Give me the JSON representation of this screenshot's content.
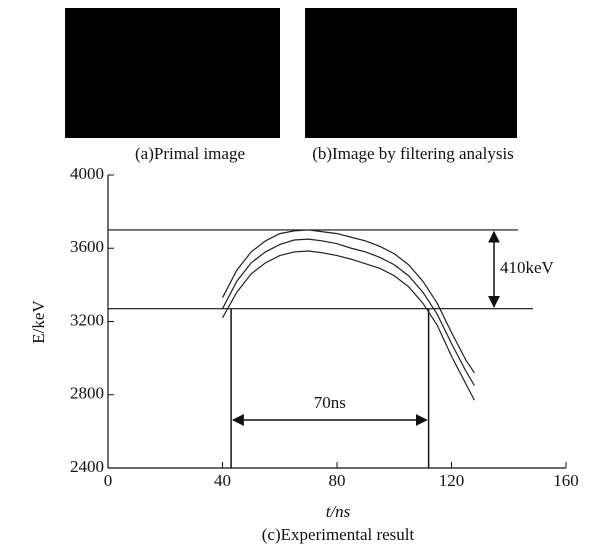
{
  "images": [
    {
      "caption": "(a)Primal image"
    },
    {
      "caption": "(b)Image by filtering analysis"
    }
  ],
  "chart_data": {
    "type": "line",
    "caption": "(c)Experimental result",
    "x_label": "t/ns",
    "y_label": "E/keV",
    "x": [
      40,
      45,
      50,
      55,
      60,
      65,
      70,
      75,
      80,
      85,
      90,
      95,
      100,
      105,
      110,
      115,
      120,
      125,
      128
    ],
    "series": [
      {
        "color": "#222222",
        "values": [
          3330,
          3480,
          3580,
          3640,
          3680,
          3695,
          3700,
          3690,
          3680,
          3660,
          3640,
          3610,
          3570,
          3510,
          3420,
          3300,
          3140,
          2990,
          2920
        ]
      },
      {
        "color": "#222222",
        "values": [
          3270,
          3420,
          3520,
          3580,
          3620,
          3645,
          3650,
          3640,
          3625,
          3600,
          3580,
          3550,
          3510,
          3450,
          3360,
          3240,
          3080,
          2930,
          2850
        ]
      },
      {
        "color": "#222222",
        "values": [
          3220,
          3360,
          3460,
          3520,
          3560,
          3580,
          3585,
          3575,
          3560,
          3540,
          3515,
          3490,
          3450,
          3390,
          3300,
          3180,
          3010,
          2860,
          2770
        ]
      }
    ],
    "hlines": [
      3700,
      3270
    ],
    "vlines": [
      43,
      112
    ],
    "annotations": [
      "410keV",
      "70ns"
    ],
    "xlim": [
      0,
      160
    ],
    "xticks": [
      0,
      40,
      80,
      120,
      160
    ],
    "ylim": [
      2400,
      4000
    ],
    "yticks": [
      2400,
      2800,
      3200,
      3600,
      4000
    ]
  }
}
